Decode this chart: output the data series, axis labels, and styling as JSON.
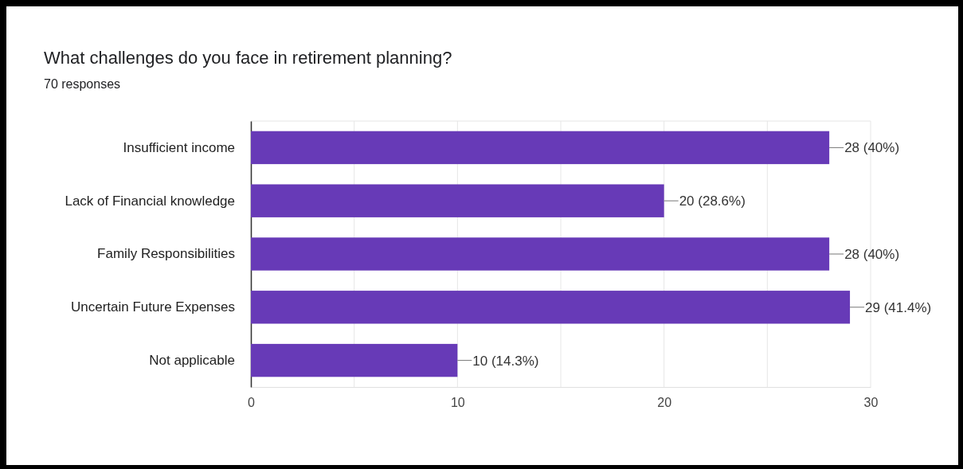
{
  "chart_data": {
    "type": "bar",
    "orientation": "horizontal",
    "title": "What challenges do you face in retirement planning?",
    "subtitle": "70 responses",
    "categories": [
      "Insufficient income",
      "Lack of Financial knowledge",
      "Family Responsibilities",
      "Uncertain Future Expenses",
      "Not applicable"
    ],
    "values": [
      28,
      20,
      28,
      29,
      10
    ],
    "value_labels": [
      "28 (40%)",
      "20 (28.6%)",
      "28 (40%)",
      "29 (41.4%)",
      "10 (14.3%)"
    ],
    "color": "#673ab7",
    "xlim": [
      0,
      30
    ],
    "xticks": [
      0,
      {
        "value": 5,
        "label": null
      },
      10,
      {
        "value": 15,
        "label": null
      },
      20,
      {
        "value": 25,
        "label": null
      },
      30
    ],
    "grid": "x"
  }
}
